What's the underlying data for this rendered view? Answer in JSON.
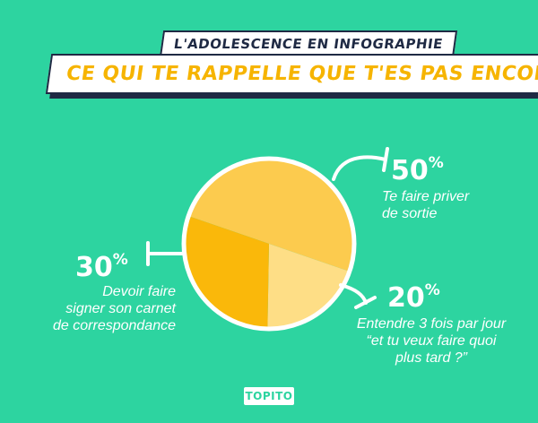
{
  "header": {
    "subtitle": "L'adolescence en infographie",
    "title": "Ce qui te rappelle que t'es pas encore adulte"
  },
  "chart_data": {
    "type": "pie",
    "slices": [
      {
        "value": 50,
        "label_pct": "50",
        "label": "Te faire priver de sortie",
        "color": "#fccb4e"
      },
      {
        "value": 20,
        "label_pct": "20",
        "label": "Entendre 3 fois par jour “et tu veux faire quoi plus tard ?”",
        "color": "#fede86"
      },
      {
        "value": 30,
        "label_pct": "30",
        "label": "Devoir faire signer son carnet de correspondance",
        "color": "#fab80a"
      }
    ]
  },
  "labels": {
    "s1_pct": "50",
    "s1_line1": "Te faire priver",
    "s1_line2": "de sortie",
    "s2_pct": "20",
    "s2_line1": "Entendre 3 fois par jour",
    "s2_line2": "“et tu veux faire quoi",
    "s2_line3": "plus tard ?”",
    "s3_pct": "30",
    "s3_line1": "Devoir faire",
    "s3_line2": "signer son carnet",
    "s3_line3": "de correspondance",
    "percent_sign": "%"
  },
  "logo": "TOPITO"
}
